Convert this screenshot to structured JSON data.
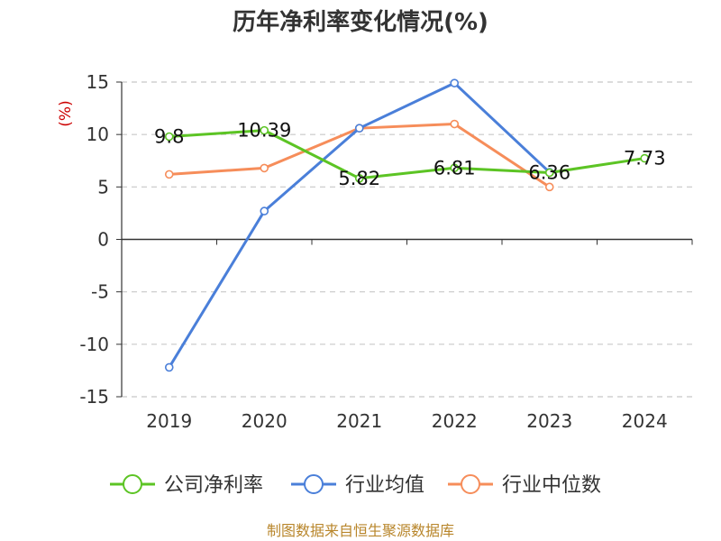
{
  "chart_data": {
    "type": "line",
    "title": "历年净利率变化情况(%)",
    "ylabel": "(%)",
    "xlabel": "",
    "categories": [
      "2019",
      "2020",
      "2021",
      "2022",
      "2023",
      "2024"
    ],
    "ylim": [
      -15,
      15
    ],
    "yticks": [
      15,
      10,
      5,
      0,
      -5,
      -10,
      -15
    ],
    "grid": true,
    "legend_position": "bottom",
    "series": [
      {
        "name": "公司净利率",
        "color": "#5cc424",
        "values": [
          9.8,
          10.39,
          5.82,
          6.81,
          6.36,
          7.73
        ],
        "labels": [
          "9.8",
          "10.39",
          "5.82",
          "6.81",
          "6.36",
          "7.73"
        ]
      },
      {
        "name": "行业均值",
        "color": "#4a7fd9",
        "values": [
          -12.2,
          2.7,
          10.6,
          14.9,
          6.4,
          null
        ]
      },
      {
        "name": "行业中位数",
        "color": "#f68d5a",
        "values": [
          6.2,
          6.8,
          10.6,
          11.0,
          5.0,
          null
        ]
      }
    ]
  },
  "source": "制图数据来自恒生聚源数据库"
}
